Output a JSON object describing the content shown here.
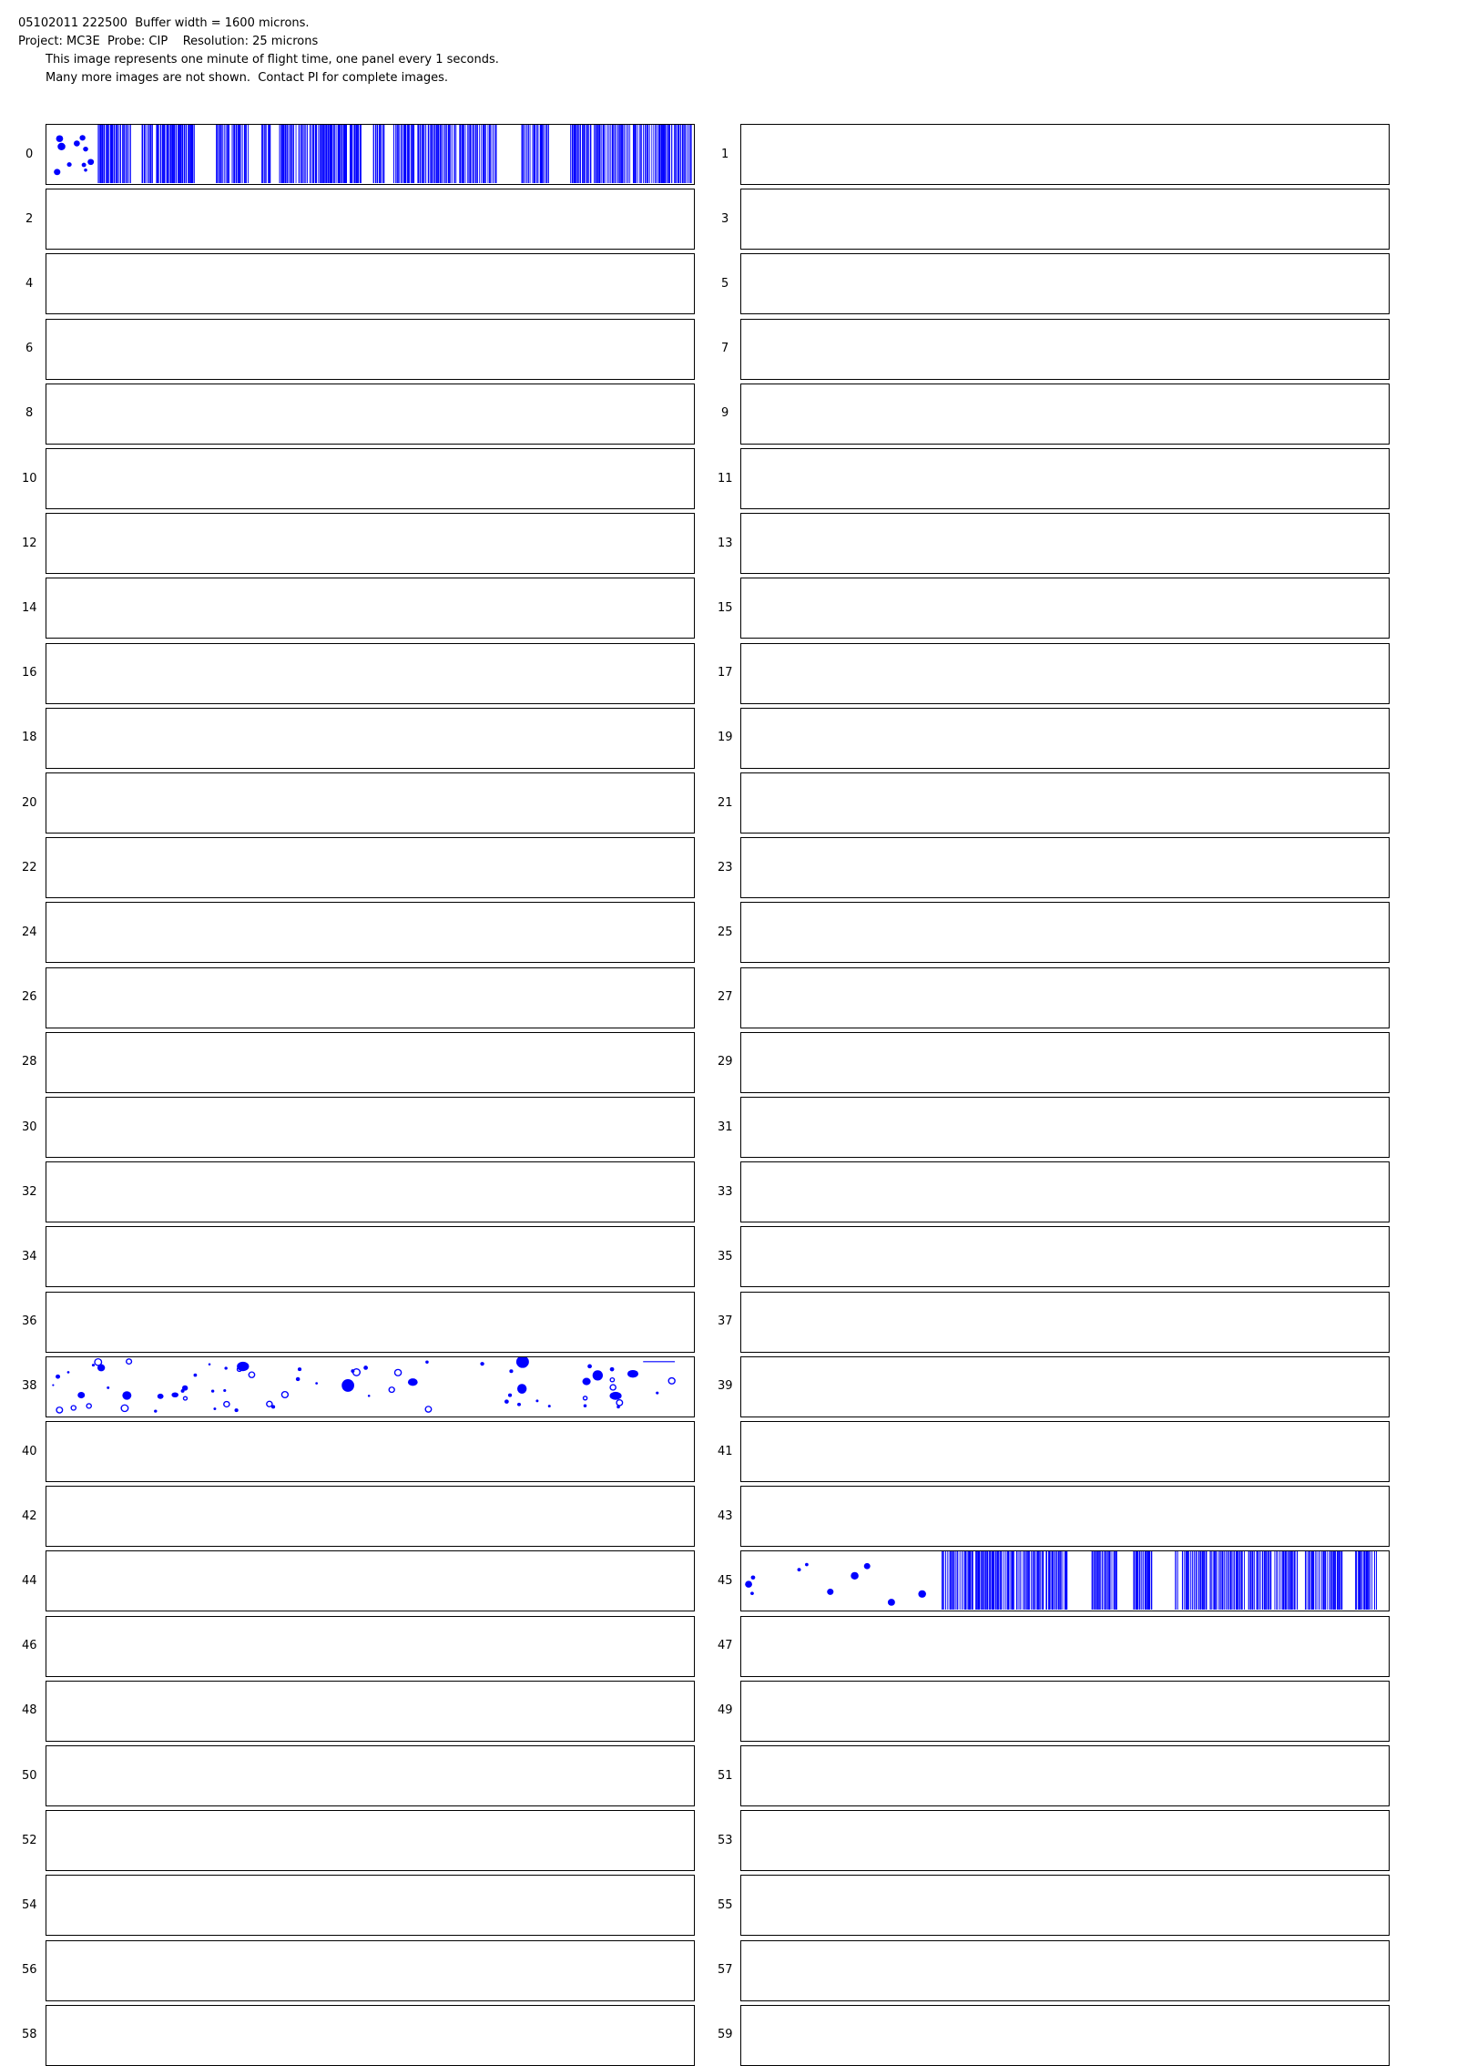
{
  "header": {
    "line1": "05102011 222500  Buffer width = 1600 microns.",
    "line2": "Project: MC3E  Probe: CIP    Resolution: 25 microns",
    "line3": "This image represents one minute of flight time, one panel every 1 seconds.",
    "line4": "Many more images are not shown.  Contact PI for complete images."
  },
  "panels": {
    "count": 60,
    "labels": [
      "0",
      "1",
      "2",
      "3",
      "4",
      "5",
      "6",
      "7",
      "8",
      "9",
      "10",
      "11",
      "12",
      "13",
      "14",
      "15",
      "16",
      "17",
      "18",
      "19",
      "20",
      "21",
      "22",
      "23",
      "24",
      "25",
      "26",
      "27",
      "28",
      "29",
      "30",
      "31",
      "32",
      "33",
      "34",
      "35",
      "36",
      "37",
      "38",
      "39",
      "40",
      "41",
      "42",
      "43",
      "44",
      "45",
      "46",
      "47",
      "48",
      "49",
      "50",
      "51",
      "52",
      "53",
      "54",
      "55",
      "56",
      "57",
      "58",
      "59"
    ],
    "with_particle_images": [
      {
        "index": 0,
        "pattern": "sparse-then-streaks"
      },
      {
        "index": 38,
        "pattern": "scattered-particles"
      },
      {
        "index": 45,
        "pattern": "sparse-then-streaks"
      }
    ]
  },
  "colors": {
    "particle": "#0000ff",
    "border": "#000000",
    "background": "#ffffff"
  }
}
